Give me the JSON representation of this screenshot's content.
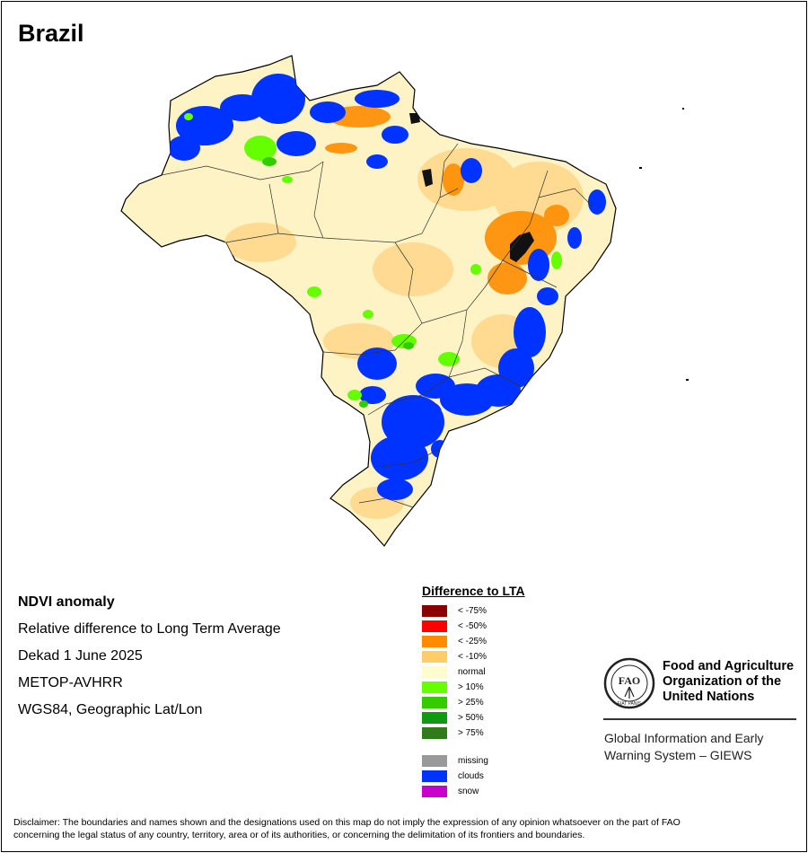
{
  "map": {
    "country": "Brazil",
    "legend_region_fill": "#fef8d6"
  },
  "info": {
    "heading": "NDVI anomaly",
    "subtitle": "Relative difference to Long Term Average",
    "period": "Dekad 1 June 2025",
    "sensor": "METOP-AVHRR",
    "projection": "WGS84, Geographic Lat/Lon"
  },
  "legend": {
    "title": "Difference to LTA",
    "items": [
      {
        "label": "< -75%",
        "color": "#8b0000"
      },
      {
        "label": "< -50%",
        "color": "#ff0000"
      },
      {
        "label": "< -25%",
        "color": "#ff8c00"
      },
      {
        "label": "< -10%",
        "color": "#ffcc66"
      },
      {
        "label": "normal",
        "color": "#fffcd0"
      },
      {
        "label": "> 10%",
        "color": "#66ff00"
      },
      {
        "label": "> 25%",
        "color": "#33cc00"
      },
      {
        "label": "> 50%",
        "color": "#119911"
      },
      {
        "label": "> 75%",
        "color": "#2e7d1a"
      }
    ],
    "other_items": [
      {
        "label": "missing",
        "color": "#999999"
      },
      {
        "label": "clouds",
        "color": "#0033ff"
      },
      {
        "label": "snow",
        "color": "#cc00cc"
      }
    ]
  },
  "organization": {
    "logo_text": "FAO",
    "logo_motto": "FIAT PANIS",
    "name_line1": "Food and Agriculture",
    "name_line2": "Organization of the",
    "name_line3": "United Nations",
    "system_line1": "Global Information and Early",
    "system_line2": "Warning System – GIEWS"
  },
  "disclaimer": {
    "line1": "Disclaimer: The boundaries and names shown and the designations used on this map do not imply the expression of any opinion whatsoever on the part of FAO",
    "line2": "concerning the legal status of any country, territory, area or of its authorities, or concerning the delimitation of its frontiers and boundaries."
  }
}
